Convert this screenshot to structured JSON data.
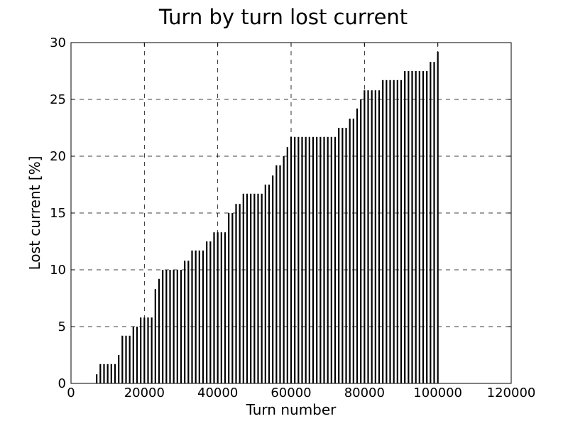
{
  "chart_data": {
    "type": "bar",
    "title": "Turn by turn lost current",
    "xlabel": "Turn number",
    "ylabel": "Lost current [%]",
    "xlim": [
      0,
      120000
    ],
    "ylim": [
      0,
      30
    ],
    "xticks": [
      0,
      20000,
      40000,
      60000,
      80000,
      100000,
      120000
    ],
    "xtick_labels": [
      "0",
      "20000",
      "40000",
      "60000",
      "80000",
      "100000",
      "120000"
    ],
    "yticks": [
      0,
      5,
      10,
      15,
      20,
      25,
      30
    ],
    "ytick_labels": [
      "0",
      "5",
      "10",
      "15",
      "20",
      "25",
      "30"
    ],
    "grid": true,
    "grid_style": "dashed",
    "bar_color": "#000000",
    "x": [
      7000,
      8000,
      9000,
      10000,
      11000,
      12000,
      13000,
      14000,
      15000,
      16000,
      17000,
      18000,
      19000,
      20000,
      21000,
      22000,
      23000,
      24000,
      25000,
      26000,
      27000,
      28000,
      29000,
      30000,
      31000,
      32000,
      33000,
      34000,
      35000,
      36000,
      37000,
      38000,
      39000,
      40000,
      41000,
      42000,
      43000,
      44000,
      45000,
      46000,
      47000,
      48000,
      49000,
      50000,
      51000,
      52000,
      53000,
      54000,
      55000,
      56000,
      57000,
      58000,
      59000,
      60000,
      61000,
      62000,
      63000,
      64000,
      65000,
      66000,
      67000,
      68000,
      69000,
      70000,
      71000,
      72000,
      73000,
      74000,
      75000,
      76000,
      77000,
      78000,
      79000,
      80000,
      81000,
      82000,
      83000,
      84000,
      85000,
      86000,
      87000,
      88000,
      89000,
      90000,
      91000,
      92000,
      93000,
      94000,
      95000,
      96000,
      97000,
      98000,
      99000,
      100000
    ],
    "values": [
      0.8,
      1.7,
      1.7,
      1.7,
      1.7,
      1.7,
      2.5,
      4.2,
      4.2,
      4.2,
      5.0,
      5.0,
      5.8,
      5.8,
      5.8,
      5.8,
      8.3,
      9.2,
      10.0,
      10.0,
      10.0,
      10.0,
      10.0,
      10.0,
      10.8,
      10.8,
      11.7,
      11.7,
      11.7,
      11.7,
      12.5,
      12.5,
      13.3,
      13.3,
      13.3,
      13.3,
      15.0,
      15.0,
      15.8,
      15.8,
      16.7,
      16.7,
      16.7,
      16.7,
      16.7,
      16.7,
      17.5,
      17.5,
      18.3,
      19.2,
      19.2,
      20.0,
      20.8,
      21.7,
      21.7,
      21.7,
      21.7,
      21.7,
      21.7,
      21.7,
      21.7,
      21.7,
      21.7,
      21.7,
      21.7,
      21.7,
      22.5,
      22.5,
      22.5,
      23.3,
      23.3,
      24.2,
      25.0,
      25.8,
      25.8,
      25.8,
      25.8,
      25.8,
      26.7,
      26.7,
      26.7,
      26.7,
      26.7,
      26.7,
      27.5,
      27.5,
      27.5,
      27.5,
      27.5,
      27.5,
      27.5,
      28.3,
      28.3,
      29.2
    ]
  }
}
